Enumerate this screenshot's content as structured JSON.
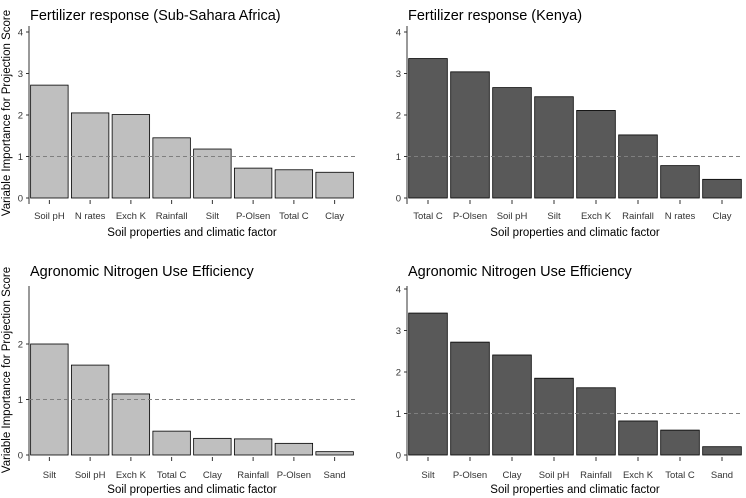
{
  "y_axis_label": "Variable Importance for Projection Score",
  "colors": {
    "light_bar": "#bfbfbf",
    "dark_bar": "#595959",
    "bar_stroke": "#000000",
    "reference_line": "#7f7f7f"
  },
  "chart_data": [
    {
      "type": "bar",
      "title": "Fertilizer response (Sub-Sahara Africa)",
      "xlabel": "Soil properties and climatic factor",
      "ylabel": "Variable Importance for Projection Score",
      "categories": [
        "Soil pH",
        "N rates",
        "Exch K",
        "Rainfall",
        "Silt",
        "P-Olsen",
        "Total C",
        "Clay"
      ],
      "values": [
        2.72,
        2.05,
        2.01,
        1.45,
        1.18,
        0.72,
        0.68,
        0.62
      ],
      "ylim": [
        0,
        4
      ],
      "yticks": [
        0,
        1,
        2,
        3,
        4
      ],
      "reference_line": 1,
      "bar_color": "#bfbfbf",
      "grid": false
    },
    {
      "type": "bar",
      "title": "Fertilizer response (Kenya)",
      "xlabel": "Soil properties and climatic factor",
      "ylabel": "Variable Importance for Projection Score",
      "categories": [
        "Total C",
        "P-Olsen",
        "Soil pH",
        "Silt",
        "Exch K",
        "Rainfall",
        "N rates",
        "Clay"
      ],
      "values": [
        3.36,
        3.04,
        2.66,
        2.44,
        2.11,
        1.52,
        0.78,
        0.45
      ],
      "ylim": [
        0,
        4
      ],
      "yticks": [
        0,
        1,
        2,
        3,
        4
      ],
      "reference_line": 1,
      "bar_color": "#595959",
      "grid": false
    },
    {
      "type": "bar",
      "title": "Agronomic Nitrogen Use Efficiency",
      "xlabel": "Soil properties and climatic factor",
      "ylabel": "Variable Importance for Projection Score",
      "categories": [
        "Silt",
        "Soil pH",
        "Exch K",
        "Total C",
        "Clay",
        "Rainfall",
        "P-Olsen",
        "Sand"
      ],
      "values": [
        2.0,
        1.62,
        1.1,
        0.43,
        0.3,
        0.29,
        0.21,
        0.06
      ],
      "ylim": [
        0,
        3
      ],
      "yticks": [
        0,
        1,
        2
      ],
      "reference_line": 1,
      "bar_color": "#bfbfbf",
      "grid": false
    },
    {
      "type": "bar",
      "title": "Agronomic Nitrogen Use Efficiency",
      "xlabel": "Soil properties and climatic factor",
      "ylabel": "Variable Importance for Projection Score",
      "categories": [
        "Silt",
        "P-Olsen",
        "Clay",
        "Soil pH",
        "Rainfall",
        "Exch K",
        "Total C",
        "Sand"
      ],
      "values": [
        3.42,
        2.72,
        2.41,
        1.85,
        1.62,
        0.82,
        0.6,
        0.2
      ],
      "ylim": [
        0,
        4
      ],
      "yticks": [
        0,
        1,
        2,
        3,
        4
      ],
      "reference_line": 1,
      "bar_color": "#595959",
      "grid": false
    }
  ]
}
